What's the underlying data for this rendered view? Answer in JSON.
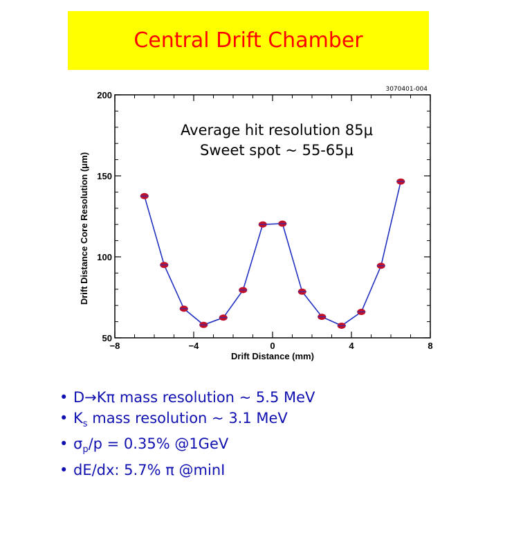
{
  "slide_title": "Central Drift Chamber",
  "chart_data": {
    "type": "line",
    "id_label": "3070401-004",
    "annotation_line1": "Average hit resolution 85μ",
    "annotation_line2": "Sweet spot ~ 55-65μ",
    "xlabel": "Drift Distance (mm)",
    "ylabel": "Drift Distance Core Resolution (μm)",
    "xlim": [
      -8,
      8
    ],
    "ylim": [
      50,
      200
    ],
    "xticks": [
      -8,
      -4,
      0,
      4,
      8
    ],
    "yticks": [
      50,
      100,
      150,
      200
    ],
    "grid": false,
    "marker_color": "#c0102a",
    "line_color": "#2030c0",
    "series": [
      {
        "x": [
          -6.5,
          -5.5,
          -4.5,
          -3.5,
          -2.5,
          -1.5,
          -0.5,
          0.5,
          1.5,
          2.5,
          3.5,
          4.5,
          5.5,
          6.5
        ],
        "values": [
          137.5,
          95,
          68,
          58,
          62.5,
          79.5,
          120,
          120.5,
          78.5,
          63,
          57.5,
          66,
          94.5,
          146.5
        ]
      }
    ]
  },
  "bullets": [
    {
      "marker": "•",
      "text": "D→Kπ mass resolution ~ 5.5 MeV"
    },
    {
      "marker": "•",
      "text": "K",
      "sub": "s",
      "text_after": " mass resolution ~ 3.1 MeV"
    },
    {
      "marker": "•",
      "text": "σ",
      "sub": "p",
      "text_after": "/p = 0.35% @1GeV"
    },
    {
      "marker": "•",
      "text": "dE/dx: 5.7% π @minI"
    }
  ]
}
